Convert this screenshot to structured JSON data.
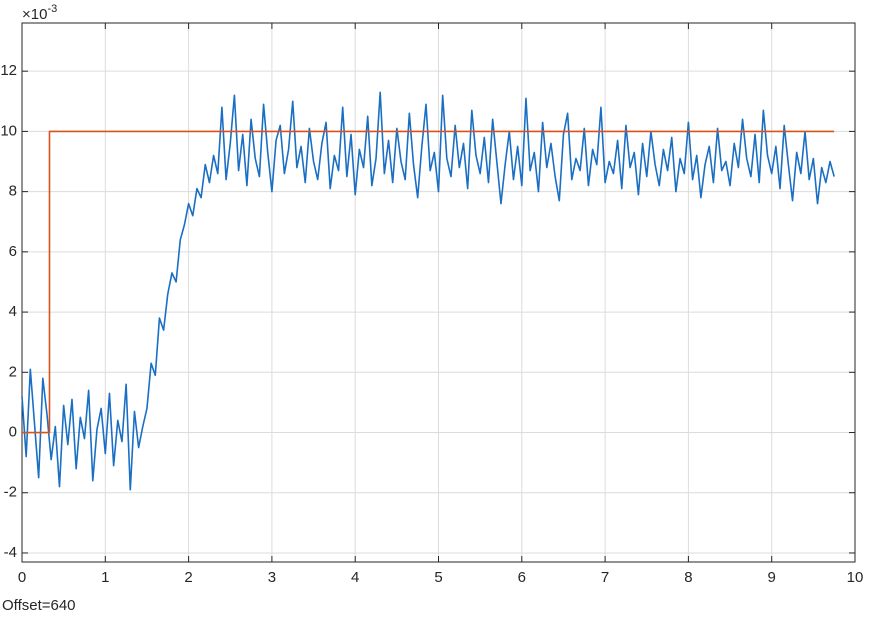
{
  "chart_data": {
    "type": "line",
    "y_multiplier": {
      "base": "×10",
      "exponent": "-3"
    },
    "annotation": "Offset=640",
    "xlim": [
      0,
      10
    ],
    "ylim": [
      -4.3,
      13.6
    ],
    "xticks": [
      0,
      1,
      2,
      3,
      4,
      5,
      6,
      7,
      8,
      9,
      10
    ],
    "yticks": [
      -4,
      -2,
      0,
      2,
      4,
      6,
      8,
      10,
      12
    ],
    "grid": true,
    "series": [
      {
        "color": "#1a6fc4",
        "x": [
          0,
          0.05,
          0.1,
          0.15,
          0.2,
          0.25,
          0.3,
          0.35,
          0.4,
          0.45,
          0.5,
          0.55,
          0.6,
          0.65,
          0.7,
          0.75,
          0.8,
          0.85,
          0.9,
          0.95,
          1,
          1.05,
          1.1,
          1.15,
          1.2,
          1.25,
          1.3,
          1.35,
          1.4,
          1.45,
          1.5,
          1.55,
          1.6,
          1.65,
          1.7,
          1.75,
          1.8,
          1.85,
          1.9,
          1.95,
          2,
          2.05,
          2.1,
          2.15,
          2.2,
          2.25,
          2.3,
          2.35,
          2.4,
          2.45,
          2.5,
          2.55,
          2.6,
          2.65,
          2.7,
          2.75,
          2.8,
          2.85,
          2.9,
          2.95,
          3,
          3.05,
          3.1,
          3.15,
          3.2,
          3.25,
          3.3,
          3.35,
          3.4,
          3.45,
          3.5,
          3.55,
          3.6,
          3.65,
          3.7,
          3.75,
          3.8,
          3.85,
          3.9,
          3.95,
          4,
          4.05,
          4.1,
          4.15,
          4.2,
          4.25,
          4.3,
          4.35,
          4.4,
          4.45,
          4.5,
          4.55,
          4.6,
          4.65,
          4.7,
          4.75,
          4.8,
          4.85,
          4.9,
          4.95,
          5,
          5.05,
          5.1,
          5.15,
          5.2,
          5.25,
          5.3,
          5.35,
          5.4,
          5.45,
          5.5,
          5.55,
          5.6,
          5.65,
          5.7,
          5.75,
          5.8,
          5.85,
          5.9,
          5.95,
          6,
          6.05,
          6.1,
          6.15,
          6.2,
          6.25,
          6.3,
          6.35,
          6.4,
          6.45,
          6.5,
          6.55,
          6.6,
          6.65,
          6.7,
          6.75,
          6.8,
          6.85,
          6.9,
          6.95,
          7,
          7.05,
          7.1,
          7.15,
          7.2,
          7.25,
          7.3,
          7.35,
          7.4,
          7.45,
          7.5,
          7.55,
          7.6,
          7.65,
          7.7,
          7.75,
          7.8,
          7.85,
          7.9,
          7.95,
          8,
          8.05,
          8.1,
          8.15,
          8.2,
          8.25,
          8.3,
          8.35,
          8.4,
          8.45,
          8.5,
          8.55,
          8.6,
          8.65,
          8.7,
          8.75,
          8.8,
          8.85,
          8.9,
          8.95,
          9,
          9.05,
          9.1,
          9.15,
          9.2,
          9.25,
          9.3,
          9.35,
          9.4,
          9.45,
          9.5,
          9.55,
          9.6,
          9.65,
          9.7,
          9.75
        ],
        "values": [
          1.2,
          -0.8,
          2.1,
          0.3,
          -1.5,
          1.8,
          0.6,
          -0.9,
          0.2,
          -1.8,
          0.9,
          -0.4,
          1.1,
          -1.2,
          0.5,
          -0.2,
          1.4,
          -1.6,
          0.1,
          0.8,
          -0.7,
          1.3,
          -1.1,
          0.4,
          -0.3,
          1.6,
          -1.9,
          0.7,
          -0.5,
          0.2,
          0.8,
          2.3,
          1.9,
          3.8,
          3.4,
          4.6,
          5.3,
          5.0,
          6.4,
          6.9,
          7.6,
          7.2,
          8.1,
          7.8,
          8.9,
          8.3,
          9.2,
          8.6,
          10.8,
          8.4,
          9.6,
          11.2,
          8.7,
          9.9,
          8.2,
          10.4,
          9.1,
          8.5,
          10.9,
          9.3,
          8.0,
          9.7,
          10.2,
          8.6,
          9.4,
          11.0,
          8.8,
          9.5,
          8.3,
          10.1,
          9.0,
          8.4,
          9.6,
          10.3,
          8.1,
          9.2,
          8.7,
          10.8,
          8.5,
          9.9,
          7.9,
          9.4,
          8.8,
          10.5,
          8.2,
          9.1,
          11.3,
          8.6,
          9.7,
          8.3,
          10.1,
          9.0,
          8.4,
          10.6,
          8.9,
          7.8,
          9.5,
          10.9,
          8.7,
          9.3,
          8.0,
          11.2,
          9.1,
          8.5,
          10.2,
          8.8,
          9.6,
          8.1,
          10.7,
          9.2,
          8.6,
          9.8,
          8.3,
          10.4,
          9.0,
          7.6,
          8.9,
          10.0,
          8.4,
          9.5,
          8.2,
          11.1,
          8.7,
          9.3,
          8.0,
          10.3,
          8.8,
          9.6,
          8.5,
          7.7,
          9.9,
          10.6,
          8.4,
          9.1,
          8.7,
          10.1,
          8.2,
          9.4,
          8.9,
          10.8,
          8.3,
          9.0,
          8.6,
          9.7,
          8.1,
          10.2,
          8.8,
          9.3,
          7.9,
          9.6,
          8.5,
          10.0,
          8.9,
          8.2,
          9.4,
          8.7,
          9.8,
          8.0,
          9.1,
          8.6,
          10.3,
          8.4,
          9.2,
          7.8,
          8.9,
          9.5,
          8.3,
          10.1,
          8.7,
          9.0,
          8.2,
          9.6,
          8.8,
          10.4,
          9.1,
          8.5,
          9.9,
          8.3,
          10.7,
          9.2,
          8.6,
          9.5,
          8.1,
          10.2,
          8.9,
          7.7,
          9.3,
          8.6,
          10.0,
          8.4,
          9.1,
          7.6,
          8.8,
          8.3,
          9.0,
          8.5
        ]
      },
      {
        "color": "#d95319",
        "x": [
          0,
          0.33,
          0.33,
          9.75
        ],
        "values": [
          0,
          0,
          10,
          10
        ]
      }
    ]
  }
}
